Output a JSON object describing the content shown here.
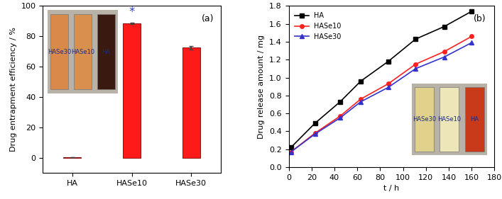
{
  "chart_data": [
    {
      "type": "bar",
      "title": "(a)",
      "y_label": "Drug entrapment efficiency / %",
      "categories": [
        "HA",
        "HASe10",
        "HASe30"
      ],
      "values": [
        0.3,
        88.5,
        72.5
      ],
      "errors": [
        0,
        0.4,
        1.0
      ],
      "color": "#ff1a1a",
      "ylim": [
        -10,
        100
      ],
      "yticks": [
        0,
        20,
        40,
        60,
        80,
        100
      ],
      "annotations": [
        {
          "text": "*",
          "category": "HASe10",
          "y": 92
        }
      ],
      "inset_labels": [
        "HASe30",
        "HASe10",
        "HA"
      ]
    },
    {
      "type": "line",
      "title": "(b)",
      "x_label": "t / h",
      "y_label": "Drug release amount / mg",
      "x": [
        2,
        23,
        45,
        63,
        87,
        111,
        136,
        160
      ],
      "series": [
        {
          "name": "HA",
          "color": "#000000",
          "marker": "square",
          "values": [
            0.22,
            0.49,
            0.73,
            0.96,
            1.18,
            1.43,
            1.57,
            1.74
          ]
        },
        {
          "name": "HASe10",
          "color": "#ff2020",
          "marker": "circle",
          "values": [
            0.17,
            0.38,
            0.57,
            0.76,
            0.93,
            1.15,
            1.29,
            1.46
          ]
        },
        {
          "name": "HASe30",
          "color": "#3333cc",
          "marker": "triangle",
          "values": [
            0.17,
            0.37,
            0.55,
            0.73,
            0.89,
            1.1,
            1.23,
            1.39
          ]
        }
      ],
      "xlim": [
        0,
        180
      ],
      "xticks": [
        0,
        20,
        40,
        60,
        80,
        100,
        120,
        140,
        160,
        180
      ],
      "ylim": [
        0,
        1.8
      ],
      "yticks": [
        {
          "value": 0,
          "label": "0.0"
        },
        0.2,
        0.4,
        0.6,
        0.8,
        {
          "value": 1,
          "label": "1.0"
        },
        1.2,
        1.4,
        1.6,
        1.8
      ],
      "legend": "upper left",
      "inset_labels": [
        "HASe30",
        "HASe10",
        "HA"
      ]
    }
  ]
}
